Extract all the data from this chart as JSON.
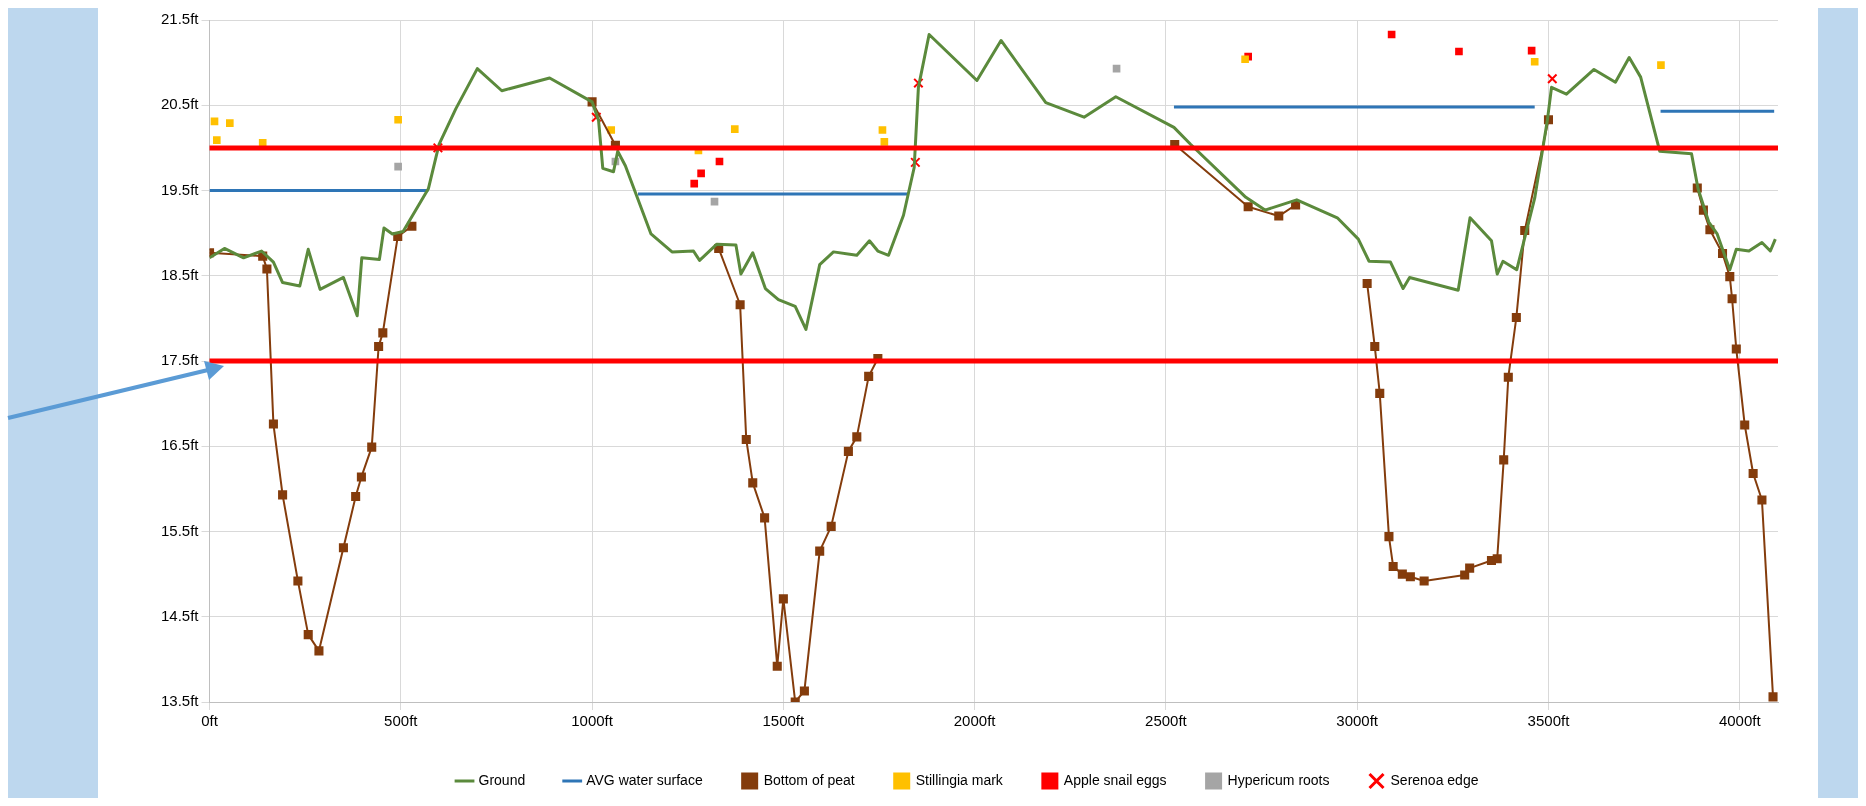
{
  "chart_data": {
    "type": "line",
    "xlim": [
      0,
      4100
    ],
    "ylim": [
      13.5,
      21.5
    ],
    "xticks": [
      {
        "value": 0,
        "label": "0ft"
      },
      {
        "value": 500,
        "label": "500ft"
      },
      {
        "value": 1000,
        "label": "1000ft"
      },
      {
        "value": 1500,
        "label": "1500ft"
      },
      {
        "value": 2000,
        "label": "2000ft"
      },
      {
        "value": 2500,
        "label": "2500ft"
      },
      {
        "value": 3000,
        "label": "3000ft"
      },
      {
        "value": 3500,
        "label": "3500ft"
      },
      {
        "value": 4000,
        "label": "4000ft"
      }
    ],
    "yticks": [
      {
        "value": 13.5,
        "label": "13.5ft"
      },
      {
        "value": 14.5,
        "label": "14.5ft"
      },
      {
        "value": 15.5,
        "label": "15.5ft"
      },
      {
        "value": 16.5,
        "label": "16.5ft"
      },
      {
        "value": 17.5,
        "label": "17.5ft"
      },
      {
        "value": 18.5,
        "label": "18.5ft"
      },
      {
        "value": 19.5,
        "label": "19.5ft"
      },
      {
        "value": 20.5,
        "label": "20.5ft"
      },
      {
        "value": 21.5,
        "label": "21.5ft"
      }
    ],
    "grid": true,
    "legend": "bottom",
    "ref_lines": [
      {
        "axis": "y",
        "value": 20.0,
        "color": "#ff0000"
      },
      {
        "axis": "y",
        "value": 17.5,
        "color": "#ff0000"
      }
    ],
    "series": [
      {
        "name": "Ground",
        "color": "#5b8a3c",
        "marker": "none",
        "x": [
          0,
          39,
          89,
          136,
          167,
          191,
          236,
          258,
          289,
          350,
          386,
          398,
          444,
          456,
          478,
          506,
          572,
          600,
          644,
          700,
          764,
          889,
          1000,
          1017,
          1028,
          1056,
          1067,
          1087,
          1154,
          1209,
          1265,
          1281,
          1326,
          1376,
          1389,
          1420,
          1453,
          1487,
          1531,
          1559,
          1595,
          1631,
          1692,
          1725,
          1747,
          1775,
          1814,
          1842,
          1853,
          1881,
          2006,
          2069,
          2186,
          2286,
          2369,
          2521,
          2565,
          2709,
          2759,
          2842,
          2948,
          3003,
          3031,
          3087,
          3120,
          3137,
          3264,
          3295,
          3351,
          3366,
          3381,
          3417,
          3464,
          3497,
          3508,
          3547,
          3619,
          3675,
          3711,
          3741,
          3791,
          3874,
          3891,
          3919,
          3941,
          3974,
          3991,
          4024,
          4058,
          4080,
          4093
        ],
        "values": [
          18.71,
          18.82,
          18.71,
          18.79,
          18.66,
          18.42,
          18.38,
          18.81,
          18.34,
          18.48,
          18.03,
          18.71,
          18.69,
          19.06,
          18.99,
          19.02,
          19.52,
          20.04,
          20.46,
          20.93,
          20.67,
          20.82,
          20.54,
          20.32,
          19.76,
          19.72,
          19.96,
          19.79,
          18.99,
          18.78,
          18.79,
          18.68,
          18.87,
          18.86,
          18.52,
          18.77,
          18.35,
          18.22,
          18.14,
          17.87,
          18.63,
          18.78,
          18.74,
          18.91,
          18.79,
          18.74,
          19.21,
          19.77,
          20.71,
          21.33,
          20.79,
          21.26,
          20.53,
          20.36,
          20.6,
          20.24,
          20.04,
          19.42,
          19.27,
          19.39,
          19.18,
          18.93,
          18.67,
          18.66,
          18.35,
          18.48,
          18.33,
          19.18,
          18.91,
          18.52,
          18.67,
          18.57,
          19.41,
          20.32,
          20.71,
          20.63,
          20.92,
          20.77,
          21.06,
          20.83,
          19.96,
          19.93,
          19.52,
          19.13,
          18.99,
          18.57,
          18.81,
          18.79,
          18.89,
          18.79,
          18.93
        ]
      },
      {
        "name": "AVG water surface",
        "color": "#2e75b6",
        "marker": "none",
        "x": [
          0,
          572,
          846,
          1120,
          1825,
          2172,
          2521,
          3464,
          3628,
          3793,
          4090
        ],
        "values": [
          19.5,
          19.5,
          null,
          19.46,
          19.46,
          null,
          20.48,
          20.48,
          null,
          20.43,
          20.43
        ]
      },
      {
        "name": "Bottom of peat",
        "color": "#843c0c",
        "marker": "square",
        "x": [
          0,
          139,
          150,
          167,
          191,
          231,
          258,
          286,
          350,
          382,
          397,
          424,
          442,
          453,
          492,
          529,
          765,
          1000,
          1061,
          1196,
          1331,
          1387,
          1403,
          1420,
          1451,
          1484,
          1500,
          1531,
          1555,
          1595,
          1625,
          1670,
          1692,
          1723,
          1747,
          2135,
          2523,
          2715,
          2795,
          2839,
          2932,
          3026,
          3046,
          3059,
          3083,
          3094,
          3118,
          3139,
          3175,
          3281,
          3294,
          3351,
          3366,
          3383,
          3395,
          3416,
          3438,
          3500,
          3695,
          3889,
          3905,
          3922,
          3955,
          3974,
          3980,
          3991,
          4013,
          4035,
          4058,
          4087
        ],
        "values": [
          18.77,
          18.73,
          18.58,
          16.76,
          15.93,
          14.92,
          14.29,
          14.1,
          15.31,
          15.91,
          16.14,
          16.49,
          17.67,
          17.83,
          18.96,
          19.08,
          null,
          20.54,
          20.03,
          null,
          18.82,
          18.16,
          16.58,
          16.07,
          15.66,
          13.92,
          14.71,
          13.5,
          13.63,
          15.27,
          15.56,
          16.44,
          16.61,
          17.32,
          17.53,
          null,
          20.04,
          19.31,
          19.2,
          19.33,
          null,
          18.41,
          17.67,
          17.12,
          15.44,
          15.09,
          15.0,
          14.97,
          14.92,
          14.99,
          15.07,
          15.16,
          15.18,
          16.34,
          17.31,
          18.01,
          19.03,
          20.33,
          null,
          19.53,
          19.27,
          19.04,
          18.76,
          18.49,
          18.23,
          17.64,
          16.75,
          16.18,
          15.87,
          13.56
        ]
      },
      {
        "name": "Stillingia mark",
        "type": "scatter",
        "color": "#ffc000",
        "marker": "square",
        "x": [
          13,
          53,
          19,
          139,
          493,
          1050,
          1278,
          1373,
          1759,
          1764,
          2707,
          3464,
          3794
        ],
        "values": [
          20.31,
          20.29,
          20.09,
          20.06,
          20.33,
          20.21,
          19.97,
          20.22,
          20.21,
          20.07,
          21.04,
          21.01,
          20.97
        ]
      },
      {
        "name": "Apple snail eggs",
        "type": "scatter",
        "color": "#ff0000",
        "marker": "square",
        "x": [
          1267,
          1285,
          1333,
          2715,
          3090,
          3266,
          3456
        ],
        "values": [
          19.58,
          19.7,
          19.84,
          21.07,
          21.33,
          21.13,
          21.14
        ]
      },
      {
        "name": "Hypericum roots",
        "type": "scatter",
        "color": "#a5a5a5",
        "marker": "square",
        "x": [
          493,
          1061,
          1320,
          2371
        ],
        "values": [
          19.78,
          19.84,
          19.37,
          20.93
        ]
      },
      {
        "name": "Serenoa edge",
        "type": "scatter",
        "color": "#ff0000",
        "marker": "cross",
        "x": [
          597,
          1011,
          1845,
          1853,
          3510
        ],
        "values": [
          20.0,
          20.36,
          19.83,
          20.76,
          20.81
        ]
      }
    ]
  }
}
